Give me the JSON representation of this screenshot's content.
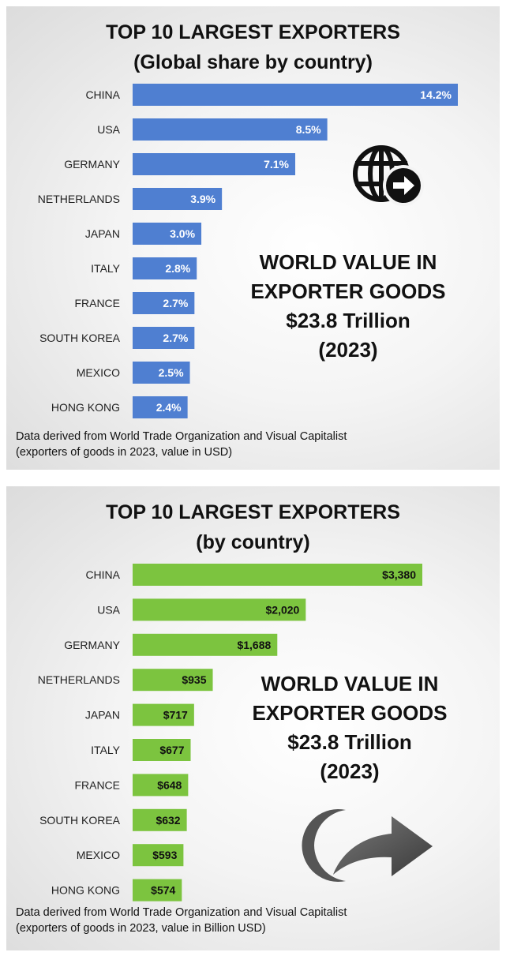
{
  "panels": [
    {
      "title_line1": "TOP 10 LARGEST EXPORTERS",
      "title_line2": "(Global share by country)",
      "callout": [
        "WORLD VALUE IN",
        "EXPORTER GOODS",
        "$23.8 Trillion",
        "(2023)"
      ],
      "note_line1": "Data derived from World Trade Organization and Visual Capitalist",
      "note_line2": "(exporters of goods in 2023, value in USD)",
      "icon": "globe-arrow-icon"
    },
    {
      "title_line1": "TOP 10 LARGEST EXPORTERS",
      "title_line2": "(by country)",
      "callout": [
        "WORLD VALUE IN",
        "EXPORTER GOODS",
        "$23.8 Trillion",
        "(2023)"
      ],
      "note_line1": "Data derived from World Trade Organization and Visual Capitalist",
      "note_line2": "(exporters of goods in 2023, value in Billion USD)",
      "icon": "curved-arrow-icon"
    }
  ],
  "chart_data": [
    {
      "type": "bar",
      "orientation": "horizontal",
      "title": "TOP 10 LARGEST EXPORTERS (Global share by country)",
      "categories": [
        "CHINA",
        "USA",
        "GERMANY",
        "NETHERLANDS",
        "JAPAN",
        "ITALY",
        "FRANCE",
        "SOUTH KOREA",
        "MEXICO",
        "HONG KONG"
      ],
      "values": [
        14.2,
        8.5,
        7.1,
        3.9,
        3.0,
        2.8,
        2.7,
        2.7,
        2.5,
        2.4
      ],
      "value_labels": [
        "14.2%",
        "8.5%",
        "7.1%",
        "3.9%",
        "3.0%",
        "2.8%",
        "2.7%",
        "2.7%",
        "2.5%",
        "2.4%"
      ],
      "unit": "%",
      "color": "#4f7fd1",
      "xlim": [
        0,
        14.2
      ],
      "grid": false,
      "legend": "none"
    },
    {
      "type": "bar",
      "orientation": "horizontal",
      "title": "TOP 10 LARGEST EXPORTERS (by country)",
      "categories": [
        "CHINA",
        "USA",
        "GERMANY",
        "NETHERLANDS",
        "JAPAN",
        "ITALY",
        "FRANCE",
        "SOUTH KOREA",
        "MEXICO",
        "HONG KONG"
      ],
      "values": [
        3380,
        2020,
        1688,
        935,
        717,
        677,
        648,
        632,
        593,
        574
      ],
      "value_labels": [
        "$3,380",
        "$2,020",
        "$1,688",
        "$935",
        "$717",
        "$677",
        "$648",
        "$632",
        "$593",
        "$574"
      ],
      "unit": "Billion USD",
      "color": "#7cc43f",
      "xlim": [
        0,
        3380
      ],
      "grid": false,
      "legend": "none"
    }
  ]
}
